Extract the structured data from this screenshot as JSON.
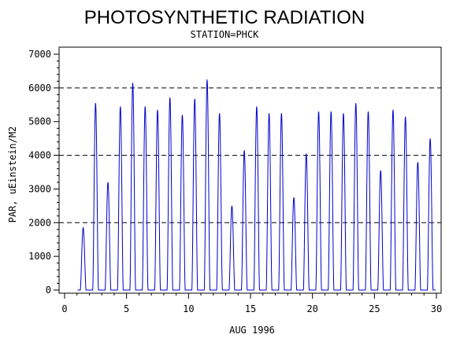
{
  "chart_data": {
    "type": "line",
    "title": "PHOTOSYNTHETIC RADIATION",
    "subtitle": "STATION=PHCK",
    "xlabel": "AUG 1996",
    "ylabel": "PAR, uEinstein/M2",
    "xlim": [
      0,
      30
    ],
    "ylim": [
      0,
      7000
    ],
    "x_ticks": [
      0,
      5,
      10,
      15,
      20,
      25,
      30
    ],
    "y_ticks": [
      0,
      1000,
      2000,
      3000,
      4000,
      5000,
      6000,
      7000
    ],
    "reference_lines": [
      2000,
      4000,
      6000
    ],
    "line_color": "#0000cc",
    "grid": false,
    "series": [
      {
        "daily_peaks": [
          {
            "day": 1,
            "peak": 1850
          },
          {
            "day": 2,
            "peak": 5550
          },
          {
            "day": 3,
            "peak": 3200
          },
          {
            "day": 4,
            "peak": 5450
          },
          {
            "day": 5,
            "peak": 6150
          },
          {
            "day": 6,
            "peak": 5450
          },
          {
            "day": 7,
            "peak": 5350
          },
          {
            "day": 8,
            "peak": 5720
          },
          {
            "day": 9,
            "peak": 5200
          },
          {
            "day": 10,
            "peak": 5680
          },
          {
            "day": 11,
            "peak": 6250
          },
          {
            "day": 12,
            "peak": 5250
          },
          {
            "day": 13,
            "peak": 2500
          },
          {
            "day": 14,
            "peak": 4150
          },
          {
            "day": 15,
            "peak": 5450
          },
          {
            "day": 16,
            "peak": 5250
          },
          {
            "day": 17,
            "peak": 5250
          },
          {
            "day": 18,
            "peak": 2750
          },
          {
            "day": 19,
            "peak": 4050
          },
          {
            "day": 20,
            "peak": 5300
          },
          {
            "day": 21,
            "peak": 5300
          },
          {
            "day": 22,
            "peak": 5250
          },
          {
            "day": 23,
            "peak": 5550
          },
          {
            "day": 24,
            "peak": 5300
          },
          {
            "day": 25,
            "peak": 3550
          },
          {
            "day": 26,
            "peak": 5350
          },
          {
            "day": 27,
            "peak": 5150
          },
          {
            "day": 28,
            "peak": 3800
          },
          {
            "day": 29,
            "peak": 4500
          }
        ]
      }
    ]
  }
}
